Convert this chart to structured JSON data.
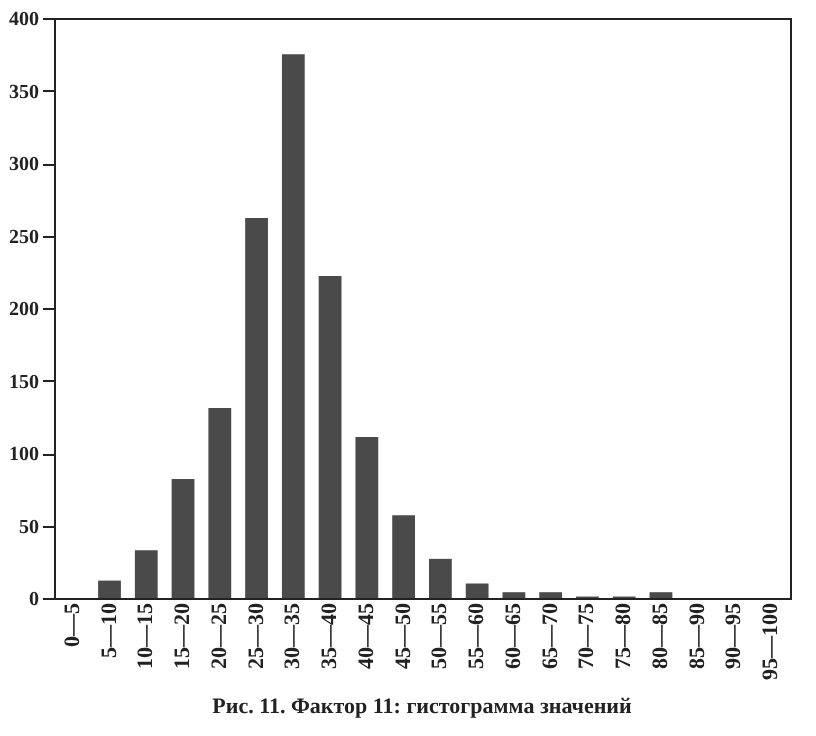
{
  "chart_data": {
    "type": "bar",
    "title": "Рис. 11.  Фактор 11: гистограмма значений",
    "categories": [
      "0—5",
      "5—10",
      "10—15",
      "15—20",
      "20—25",
      "25—30",
      "30—35",
      "35—40",
      "40—45",
      "45—50",
      "50—55",
      "55—60",
      "60—65",
      "65—70",
      "70—75",
      "75—80",
      "80—85",
      "85—90",
      "90—95",
      "95—100"
    ],
    "values": [
      0,
      12,
      33,
      82,
      131,
      262,
      375,
      222,
      111,
      57,
      27,
      10,
      4,
      4,
      1,
      1,
      4,
      0,
      0,
      0
    ],
    "color": "#4a4a4a",
    "ylim": [
      0,
      400
    ],
    "yticks": [
      0,
      50,
      100,
      150,
      200,
      250,
      300,
      350,
      400
    ],
    "grid": false
  }
}
